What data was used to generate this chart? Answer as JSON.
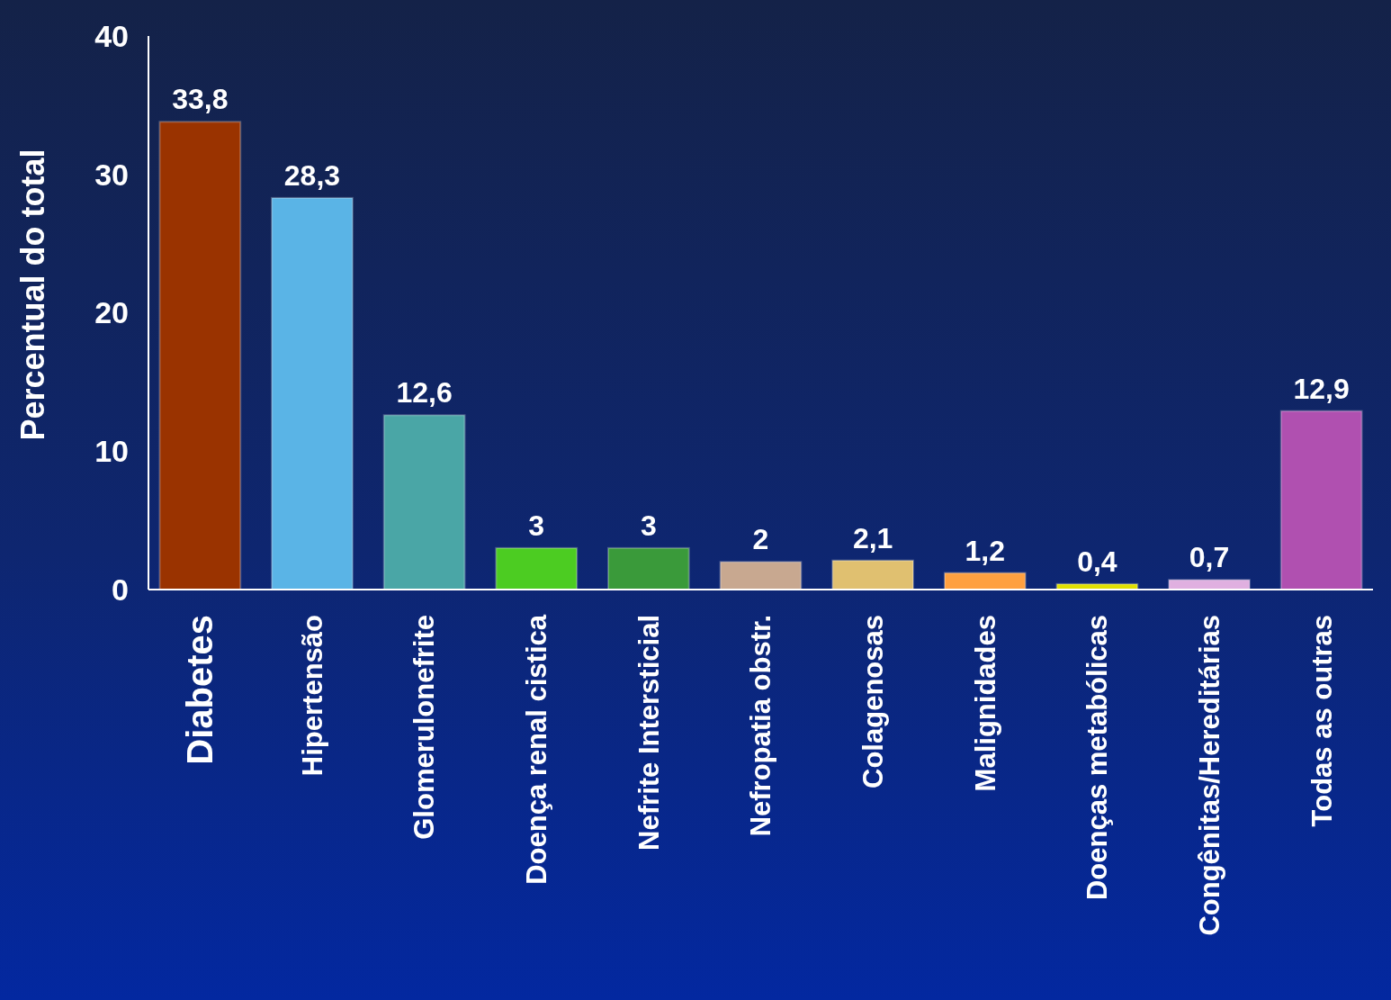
{
  "chart_data": {
    "type": "bar",
    "ylabel": "Percentual do total",
    "categories": [
      "Diabetes",
      "Hipertensão",
      "Glomerulonefrite",
      "Doença renal cistica",
      "Nefrite Intersticial",
      "Nefropatia obstr.",
      "Colagenosas",
      "Malignidades",
      "Doenças metabólicas",
      "Congênitas/Hereditárias",
      "Todas as outras"
    ],
    "values": [
      33.8,
      28.3,
      12.6,
      3,
      3,
      2,
      2.1,
      1.2,
      0.4,
      0.7,
      12.9
    ],
    "value_labels": [
      "33,8",
      "28,3",
      "12,6",
      "3",
      "3",
      "2",
      "2,1",
      "1,2",
      "0,4",
      "0,7",
      "12,9"
    ],
    "colors": [
      "#9a3300",
      "#5ab4e6",
      "#4aa6a6",
      "#4ccc22",
      "#3a9a3a",
      "#c8a890",
      "#e0c070",
      "#ffa040",
      "#e0e000",
      "#e0b0e0",
      "#b050b0"
    ],
    "ylim": [
      0,
      40
    ],
    "yticks": [
      0,
      10,
      20,
      30,
      40
    ],
    "grid": false
  }
}
